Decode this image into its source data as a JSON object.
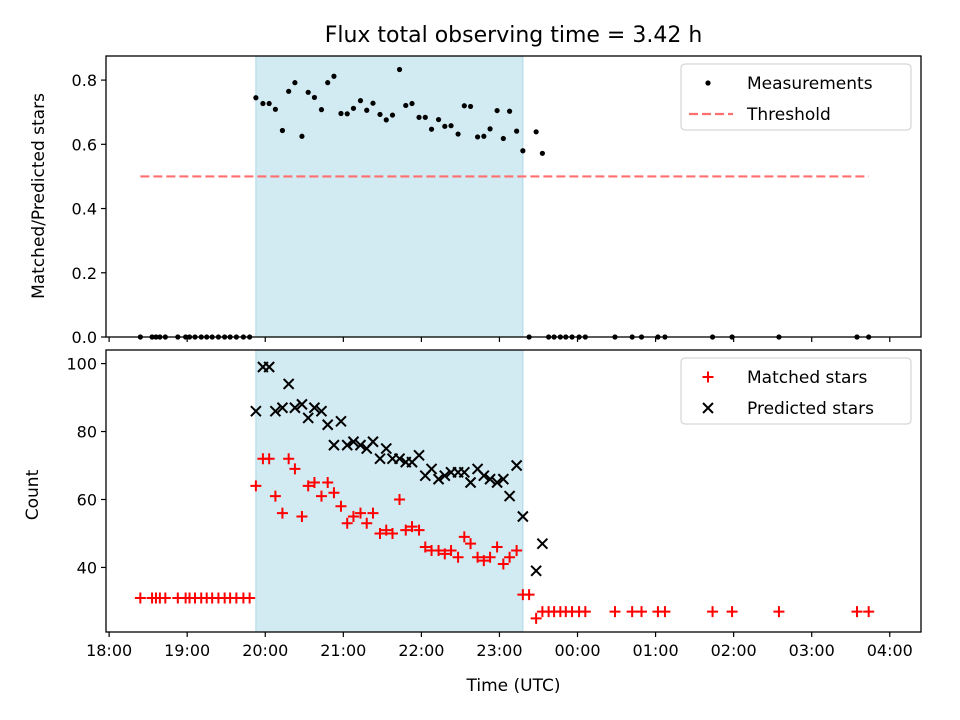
{
  "chart_data": [
    {
      "type": "scatter",
      "title": "Flux total observing time = 3.42 h",
      "xlabel": "",
      "ylabel": "Matched/Predicted stars",
      "x_unit": "hours since 18:00 UTC",
      "xlim": [
        -0.04,
        10.4
      ],
      "ylim": [
        0,
        0.875
      ],
      "yticks": [
        0.0,
        0.2,
        0.4,
        0.6,
        0.8
      ],
      "ytick_labels": [
        "0.0",
        "0.2",
        "0.4",
        "0.6",
        "0.8"
      ],
      "shaded_interval": [
        1.88,
        5.3
      ],
      "shade_color": "#add8e6",
      "legend": {
        "location": "upper right",
        "entries": [
          "Measurements",
          "Threshold"
        ]
      },
      "threshold": {
        "name": "Threshold",
        "x": [
          0.4,
          9.73
        ],
        "y": [
          0.5,
          0.5
        ],
        "color": "#ff6f6f",
        "style": "dashed"
      },
      "series": [
        {
          "name": "Measurements",
          "marker": "dot",
          "color": "#000000",
          "points": [
            [
              0.4,
              0
            ],
            [
              0.55,
              0
            ],
            [
              0.6,
              0
            ],
            [
              0.65,
              0
            ],
            [
              0.72,
              0
            ],
            [
              0.88,
              0
            ],
            [
              0.98,
              0
            ],
            [
              1.03,
              0
            ],
            [
              1.1,
              0
            ],
            [
              1.18,
              0
            ],
            [
              1.25,
              0
            ],
            [
              1.32,
              0
            ],
            [
              1.4,
              0
            ],
            [
              1.48,
              0
            ],
            [
              1.55,
              0
            ],
            [
              1.63,
              0
            ],
            [
              1.72,
              0
            ],
            [
              1.8,
              0
            ],
            [
              1.88,
              0.745
            ],
            [
              1.97,
              0.727
            ],
            [
              2.05,
              0.727
            ],
            [
              2.13,
              0.709
            ],
            [
              2.22,
              0.643
            ],
            [
              2.3,
              0.765
            ],
            [
              2.38,
              0.792
            ],
            [
              2.47,
              0.625
            ],
            [
              2.55,
              0.762
            ],
            [
              2.63,
              0.746
            ],
            [
              2.72,
              0.708
            ],
            [
              2.8,
              0.792
            ],
            [
              2.88,
              0.812
            ],
            [
              2.97,
              0.696
            ],
            [
              3.05,
              0.695
            ],
            [
              3.13,
              0.712
            ],
            [
              3.22,
              0.736
            ],
            [
              3.3,
              0.706
            ],
            [
              3.38,
              0.728
            ],
            [
              3.47,
              0.693
            ],
            [
              3.55,
              0.676
            ],
            [
              3.63,
              0.691
            ],
            [
              3.72,
              0.833
            ],
            [
              3.8,
              0.721
            ],
            [
              3.88,
              0.727
            ],
            [
              3.97,
              0.684
            ],
            [
              4.05,
              0.684
            ],
            [
              4.13,
              0.647
            ],
            [
              4.22,
              0.677
            ],
            [
              4.3,
              0.656
            ],
            [
              4.38,
              0.658
            ],
            [
              4.47,
              0.632
            ],
            [
              4.55,
              0.72
            ],
            [
              4.63,
              0.718
            ],
            [
              4.72,
              0.623
            ],
            [
              4.8,
              0.625
            ],
            [
              4.88,
              0.648
            ],
            [
              4.97,
              0.705
            ],
            [
              5.05,
              0.618
            ],
            [
              5.13,
              0.703
            ],
            [
              5.22,
              0.641
            ],
            [
              5.3,
              0.58
            ],
            [
              5.38,
              0
            ],
            [
              5.47,
              0.639
            ],
            [
              5.55,
              0.572
            ],
            [
              5.63,
              0
            ],
            [
              5.7,
              0
            ],
            [
              5.78,
              0
            ],
            [
              5.85,
              0
            ],
            [
              5.93,
              0
            ],
            [
              6.02,
              0
            ],
            [
              6.1,
              0
            ],
            [
              6.48,
              0
            ],
            [
              6.7,
              0
            ],
            [
              6.82,
              0
            ],
            [
              7.03,
              0
            ],
            [
              7.12,
              0
            ],
            [
              7.73,
              0
            ],
            [
              7.98,
              0
            ],
            [
              8.58,
              0
            ],
            [
              9.58,
              0
            ],
            [
              9.73,
              0
            ]
          ]
        }
      ]
    },
    {
      "type": "scatter",
      "title": "",
      "xlabel": "Time (UTC)",
      "ylabel": "Count",
      "x_unit": "hours since 18:00 UTC",
      "xlim": [
        -0.04,
        10.4
      ],
      "ylim": [
        21,
        104
      ],
      "yticks": [
        40,
        60,
        80,
        100
      ],
      "ytick_labels": [
        "40",
        "60",
        "80",
        "100"
      ],
      "xticks": [
        0,
        1,
        2,
        3,
        4,
        5,
        6,
        7,
        8,
        9,
        10
      ],
      "xtick_labels": [
        "18:00",
        "19:00",
        "20:00",
        "21:00",
        "22:00",
        "23:00",
        "00:00",
        "01:00",
        "02:00",
        "03:00",
        "04:00"
      ],
      "shaded_interval": [
        1.88,
        5.3
      ],
      "shade_color": "#add8e6",
      "legend": {
        "location": "upper right",
        "entries": [
          "Matched stars",
          "Predicted stars"
        ]
      },
      "series": [
        {
          "name": "Matched stars",
          "marker": "plus",
          "color": "#ff0000",
          "points": [
            [
              0.4,
              31
            ],
            [
              0.55,
              31
            ],
            [
              0.6,
              31
            ],
            [
              0.65,
              31
            ],
            [
              0.72,
              31
            ],
            [
              0.88,
              31
            ],
            [
              0.98,
              31
            ],
            [
              1.03,
              31
            ],
            [
              1.1,
              31
            ],
            [
              1.18,
              31
            ],
            [
              1.25,
              31
            ],
            [
              1.32,
              31
            ],
            [
              1.4,
              31
            ],
            [
              1.48,
              31
            ],
            [
              1.55,
              31
            ],
            [
              1.63,
              31
            ],
            [
              1.72,
              31
            ],
            [
              1.8,
              31
            ],
            [
              1.88,
              64
            ],
            [
              1.97,
              72
            ],
            [
              2.05,
              72
            ],
            [
              2.13,
              61
            ],
            [
              2.22,
              56
            ],
            [
              2.3,
              72
            ],
            [
              2.38,
              69
            ],
            [
              2.47,
              55
            ],
            [
              2.55,
              64
            ],
            [
              2.63,
              65
            ],
            [
              2.72,
              61
            ],
            [
              2.8,
              65
            ],
            [
              2.88,
              62
            ],
            [
              2.97,
              58
            ],
            [
              3.05,
              53
            ],
            [
              3.13,
              55
            ],
            [
              3.22,
              56
            ],
            [
              3.3,
              53
            ],
            [
              3.38,
              56
            ],
            [
              3.47,
              50
            ],
            [
              3.55,
              51
            ],
            [
              3.63,
              50
            ],
            [
              3.72,
              60
            ],
            [
              3.8,
              51
            ],
            [
              3.88,
              52
            ],
            [
              3.97,
              51
            ],
            [
              4.05,
              46
            ],
            [
              4.13,
              45
            ],
            [
              4.22,
              45
            ],
            [
              4.3,
              44
            ],
            [
              4.38,
              45
            ],
            [
              4.47,
              43
            ],
            [
              4.55,
              49
            ],
            [
              4.63,
              47
            ],
            [
              4.72,
              43
            ],
            [
              4.8,
              42
            ],
            [
              4.88,
              43
            ],
            [
              4.97,
              46
            ],
            [
              5.05,
              41
            ],
            [
              5.13,
              43
            ],
            [
              5.22,
              45
            ],
            [
              5.3,
              32
            ],
            [
              5.38,
              32
            ],
            [
              5.47,
              25
            ],
            [
              5.55,
              27
            ],
            [
              5.63,
              27
            ],
            [
              5.7,
              27
            ],
            [
              5.78,
              27
            ],
            [
              5.85,
              27
            ],
            [
              5.93,
              27
            ],
            [
              6.02,
              27
            ],
            [
              6.1,
              27
            ],
            [
              6.48,
              27
            ],
            [
              6.7,
              27
            ],
            [
              6.82,
              27
            ],
            [
              7.03,
              27
            ],
            [
              7.12,
              27
            ],
            [
              7.73,
              27
            ],
            [
              7.98,
              27
            ],
            [
              8.58,
              27
            ],
            [
              9.58,
              27
            ],
            [
              9.73,
              27
            ]
          ]
        },
        {
          "name": "Predicted stars",
          "marker": "x",
          "color": "#000000",
          "points": [
            [
              1.88,
              86
            ],
            [
              1.97,
              99
            ],
            [
              2.05,
              99
            ],
            [
              2.13,
              86
            ],
            [
              2.22,
              87
            ],
            [
              2.3,
              94
            ],
            [
              2.38,
              87
            ],
            [
              2.47,
              88
            ],
            [
              2.55,
              84
            ],
            [
              2.63,
              87
            ],
            [
              2.72,
              86
            ],
            [
              2.8,
              82
            ],
            [
              2.88,
              76
            ],
            [
              2.97,
              83
            ],
            [
              3.05,
              76
            ],
            [
              3.13,
              77
            ],
            [
              3.22,
              76
            ],
            [
              3.3,
              75
            ],
            [
              3.38,
              77
            ],
            [
              3.47,
              72
            ],
            [
              3.55,
              75
            ],
            [
              3.63,
              72
            ],
            [
              3.72,
              72
            ],
            [
              3.8,
              71
            ],
            [
              3.88,
              71
            ],
            [
              3.97,
              73
            ],
            [
              4.05,
              67
            ],
            [
              4.13,
              69
            ],
            [
              4.22,
              66
            ],
            [
              4.3,
              67
            ],
            [
              4.38,
              68
            ],
            [
              4.47,
              68
            ],
            [
              4.55,
              68
            ],
            [
              4.63,
              65
            ],
            [
              4.72,
              69
            ],
            [
              4.8,
              67
            ],
            [
              4.88,
              66
            ],
            [
              4.97,
              65
            ],
            [
              5.05,
              66
            ],
            [
              5.13,
              61
            ],
            [
              5.22,
              70
            ],
            [
              5.3,
              55
            ],
            [
              5.47,
              39
            ],
            [
              5.55,
              47
            ]
          ]
        }
      ]
    }
  ]
}
